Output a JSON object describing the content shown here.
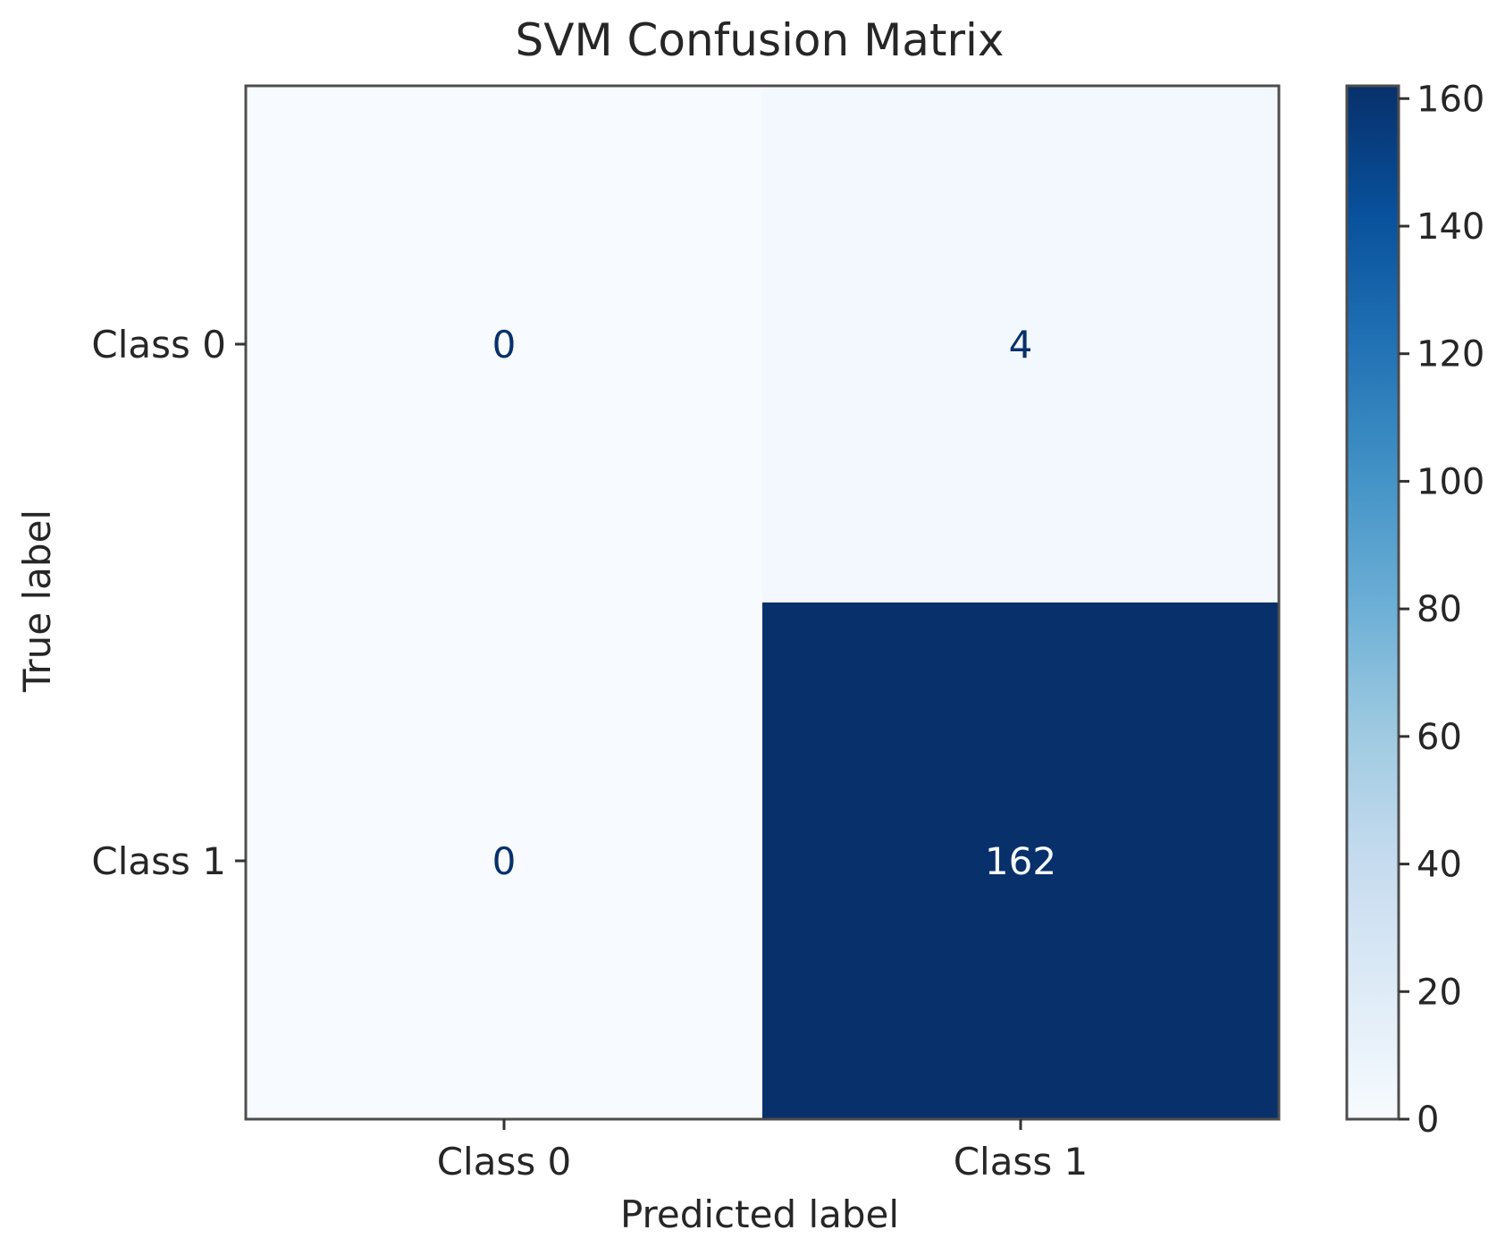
{
  "chart_data": {
    "type": "heatmap",
    "title": "SVM Confusion Matrix",
    "xlabel": "Predicted label",
    "ylabel": "True label",
    "x_categories": [
      "Class 0",
      "Class 1"
    ],
    "y_categories": [
      "Class 0",
      "Class 1"
    ],
    "values": [
      [
        0,
        4
      ],
      [
        0,
        162
      ]
    ],
    "colormap": "Blues",
    "colorbar": {
      "range": [
        0,
        162
      ],
      "ticks": [
        0,
        20,
        40,
        60,
        80,
        100,
        120,
        140,
        160
      ]
    },
    "colors": {
      "low": "#f7fbff",
      "high": "#08306b",
      "text_on_light": "#08306b",
      "text_on_dark": "#f7fbff"
    },
    "grid": false
  }
}
